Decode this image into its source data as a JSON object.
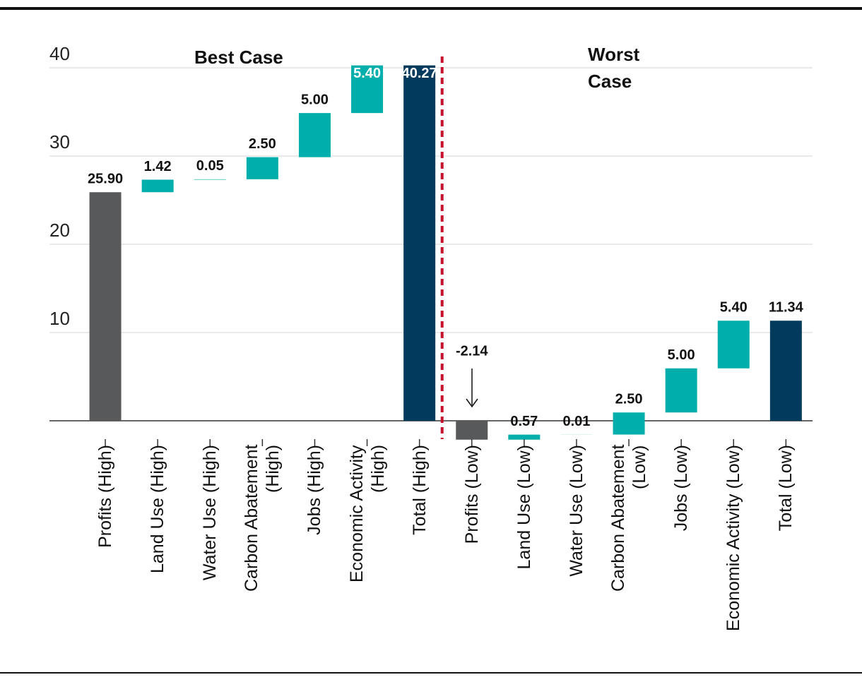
{
  "chart_data": {
    "type": "waterfall",
    "annotations": [
      "Best Case",
      "Worst Case"
    ],
    "categories": [
      "Profits (High)",
      "Land Use (High)",
      "Water Use (High)",
      "Carbon Abatement (High)",
      "Jobs (High)",
      "Economic Activity (High)",
      "Total (High)",
      "Profits (Low)",
      "Land Use (Low)",
      "Water Use (Low)",
      "Carbon Abatement (Low)",
      "Jobs (Low)",
      "Economic Activity (Low)",
      "Total (Low)"
    ],
    "values": [
      25.9,
      1.42,
      0.05,
      2.5,
      5.0,
      5.4,
      40.27,
      -2.14,
      0.57,
      0.01,
      2.5,
      5.0,
      5.4,
      11.34
    ],
    "value_labels": [
      "25.90",
      "1.42",
      "0.05",
      "2.50",
      "5.00",
      "5.40",
      "40.27",
      "-2.14",
      "0.57",
      "0.01",
      "2.50",
      "5.00",
      "5.40",
      "11.34"
    ],
    "colors": [
      "#58595b",
      "#00aeab",
      "#00aeab",
      "#00aeab",
      "#00aeab",
      "#00aeab",
      "#003a5d",
      "#58595b",
      "#00aeab",
      "#00aeab",
      "#00aeab",
      "#00aeab",
      "#00aeab",
      "#003a5d"
    ],
    "total_indices": [
      6,
      13
    ],
    "ylim": [
      -3,
      41
    ],
    "yticks": [
      10,
      20,
      30,
      40
    ],
    "grid": true
  }
}
